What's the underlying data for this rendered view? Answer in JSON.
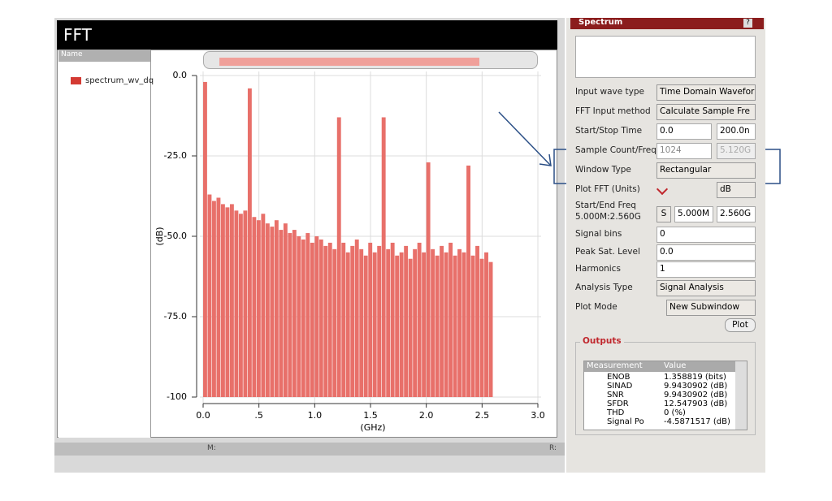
{
  "window": {
    "title": "FFT",
    "name_header": "Name",
    "trace_name": "spectrum_wv_dq",
    "status_m": "M:",
    "status_r": "R:"
  },
  "chart_data": {
    "type": "bar",
    "ylabel": "(dB)",
    "xlabel": "(GHz)",
    "x": [
      0,
      0.04,
      0.08,
      0.12,
      0.16,
      0.2,
      0.24,
      0.28,
      0.32,
      0.36,
      0.4,
      0.44,
      0.48,
      0.52,
      0.56,
      0.6,
      0.64,
      0.68,
      0.72,
      0.76,
      0.8,
      0.84,
      0.88,
      0.92,
      0.96,
      1.0,
      1.04,
      1.08,
      1.12,
      1.16,
      1.2,
      1.24,
      1.28,
      1.32,
      1.36,
      1.4,
      1.44,
      1.48,
      1.52,
      1.56,
      1.6,
      1.64,
      1.68,
      1.72,
      1.76,
      1.8,
      1.84,
      1.88,
      1.92,
      1.96,
      2.0,
      2.04,
      2.08,
      2.12,
      2.16,
      2.2,
      2.24,
      2.28,
      2.32,
      2.36,
      2.4,
      2.44,
      2.48,
      2.52,
      2.56
    ],
    "series": [
      {
        "name": "spectrum_wv_dq",
        "color": "#e8706a",
        "values": [
          -2,
          -37,
          -39,
          -38,
          -40,
          -41,
          -40,
          -42,
          -43,
          -42,
          -4,
          -44,
          -45,
          -43,
          -46,
          -47,
          -45,
          -48,
          -46,
          -49,
          -48,
          -50,
          -51,
          -49,
          -52,
          -50,
          -51,
          -53,
          -52,
          -54,
          -13,
          -52,
          -55,
          -53,
          -51,
          -54,
          -56,
          -52,
          -55,
          -53,
          -13,
          -54,
          -52,
          -56,
          -55,
          -53,
          -57,
          -54,
          -52,
          -55,
          -27,
          -54,
          -56,
          -53,
          -55,
          -52,
          -56,
          -54,
          -55,
          -28,
          -56,
          -53,
          -57,
          -55,
          -58
        ]
      }
    ],
    "xlim": [
      0,
      3
    ],
    "xticks": [
      {
        "value": 0,
        "label": "0.0"
      },
      {
        "value": 0.5,
        "label": ".5"
      },
      {
        "value": 1,
        "label": "1.0"
      },
      1.5,
      {
        "value": 2,
        "label": "2.0"
      },
      2.5,
      {
        "value": 3,
        "label": "3.0"
      }
    ],
    "ylim": [
      -100,
      0
    ],
    "yticks": [
      {
        "value": 0,
        "label": "0.0"
      },
      {
        "value": -25,
        "label": "-25.0"
      },
      {
        "value": -50,
        "label": "-50.0"
      },
      {
        "value": -75,
        "label": "-75.0"
      },
      -100
    ],
    "grid": true
  },
  "panel": {
    "title": "Spectrum",
    "help": "?",
    "rows": [
      {
        "label": "Input wave type",
        "value": "Time Domain Wavefor"
      },
      {
        "label": "FFT Input method",
        "value": "Calculate Sample Fre"
      },
      {
        "label": "Start/Stop Time",
        "value": "0.0",
        "value2": "200.0n"
      },
      {
        "label": "Sample Count/Freq",
        "value": "1024",
        "value2": "5.120G"
      },
      {
        "label": "Window Type",
        "value": "Rectangular"
      },
      {
        "label": "Plot FFT (Units)",
        "value": "dB"
      },
      {
        "label": "Start/End Freq",
        "sublabel": "5.000M:2.560G",
        "button": "S",
        "value": "5.000M",
        "value2": "2.560G"
      },
      {
        "label": "Signal bins",
        "value": "0"
      },
      {
        "label": "Peak Sat. Level",
        "value": "0.0"
      },
      {
        "label": "Harmonics",
        "value": "1"
      },
      {
        "label": "Analysis Type",
        "value": "Signal Analysis"
      },
      {
        "label": "Plot Mode",
        "value": "New Subwindow"
      }
    ],
    "plot_button": "Plot",
    "outputs": {
      "title": "Outputs",
      "columns": [
        "Measurement",
        "Value"
      ],
      "rows": [
        [
          "ENOB",
          "1.358819 (bits)"
        ],
        [
          "SINAD",
          "9.9430902 (dB)"
        ],
        [
          "SNR",
          "9.9430902 (dB)"
        ],
        [
          "SFDR",
          "12.547903 (dB)"
        ],
        [
          "THD",
          "0 (%)"
        ],
        [
          "Signal Po",
          "-4.5871517 (dB)"
        ]
      ]
    }
  }
}
